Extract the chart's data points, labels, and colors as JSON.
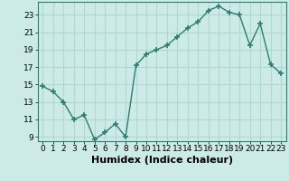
{
  "xlabel": "Humidex (Indice chaleur)",
  "x": [
    0,
    1,
    2,
    3,
    4,
    5,
    6,
    7,
    8,
    9,
    10,
    11,
    12,
    13,
    14,
    15,
    16,
    17,
    18,
    19,
    20,
    21,
    22,
    23
  ],
  "y": [
    14.8,
    14.2,
    13.0,
    11.0,
    11.5,
    8.7,
    9.5,
    10.5,
    9.0,
    17.2,
    18.5,
    19.0,
    19.5,
    20.5,
    21.5,
    22.2,
    23.5,
    24.0,
    23.3,
    23.0,
    19.5,
    22.0,
    17.3,
    16.3
  ],
  "line_color": "#2e7d6e",
  "marker": "+",
  "bg_color": "#cceae6",
  "grid_color": "#b0d8d2",
  "ylim": [
    8.5,
    24.5
  ],
  "yticks": [
    9,
    11,
    13,
    15,
    17,
    19,
    21,
    23
  ],
  "xticks": [
    0,
    1,
    2,
    3,
    4,
    5,
    6,
    7,
    8,
    9,
    10,
    11,
    12,
    13,
    14,
    15,
    16,
    17,
    18,
    19,
    20,
    21,
    22,
    23
  ],
  "xlabel_fontsize": 8,
  "tick_fontsize": 6.5,
  "line_width": 1.0,
  "marker_size": 5
}
